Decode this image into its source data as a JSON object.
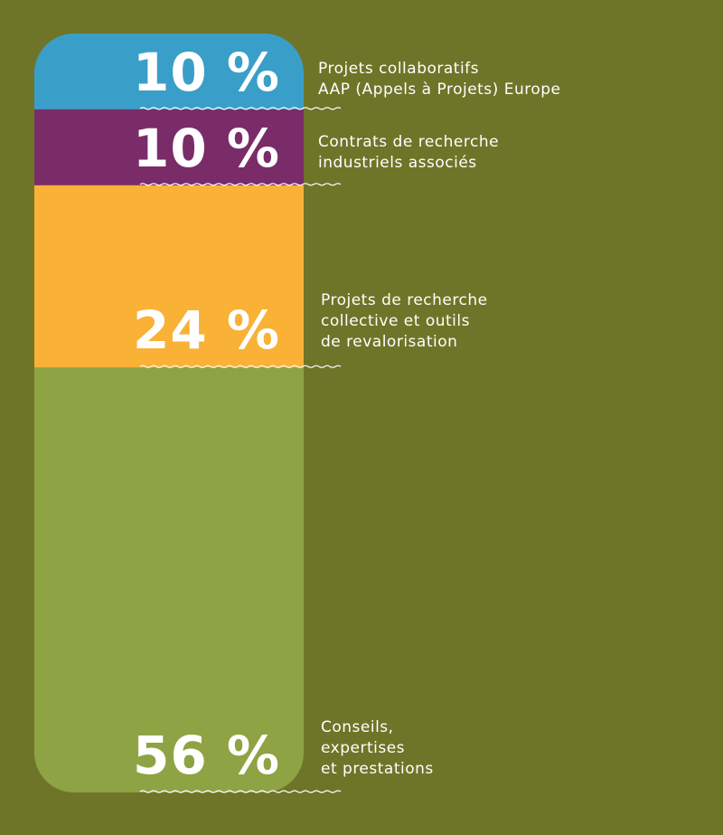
{
  "colors": {
    "background": "#6e7528",
    "segments": [
      "#399fc8",
      "#7a2c69",
      "#f9b136",
      "#8ea343"
    ],
    "wave": "#ffffff"
  },
  "chart_data": {
    "type": "bar",
    "orientation": "stacked-vertical",
    "unit": "%",
    "segments": [
      {
        "value": 10,
        "value_label": "10 %",
        "label": "Projets collaboratifs\nAAP (Appels à Projets) Europe"
      },
      {
        "value": 10,
        "value_label": "10 %",
        "label": "Contrats de recherche\nindustriels associés"
      },
      {
        "value": 24,
        "value_label": "24 %",
        "label": "Projets de recherche\ncollective et outils\nde revalorisation"
      },
      {
        "value": 56,
        "value_label": "56 %",
        "label": "Conseils,\nexpertises\net prestations"
      }
    ]
  }
}
